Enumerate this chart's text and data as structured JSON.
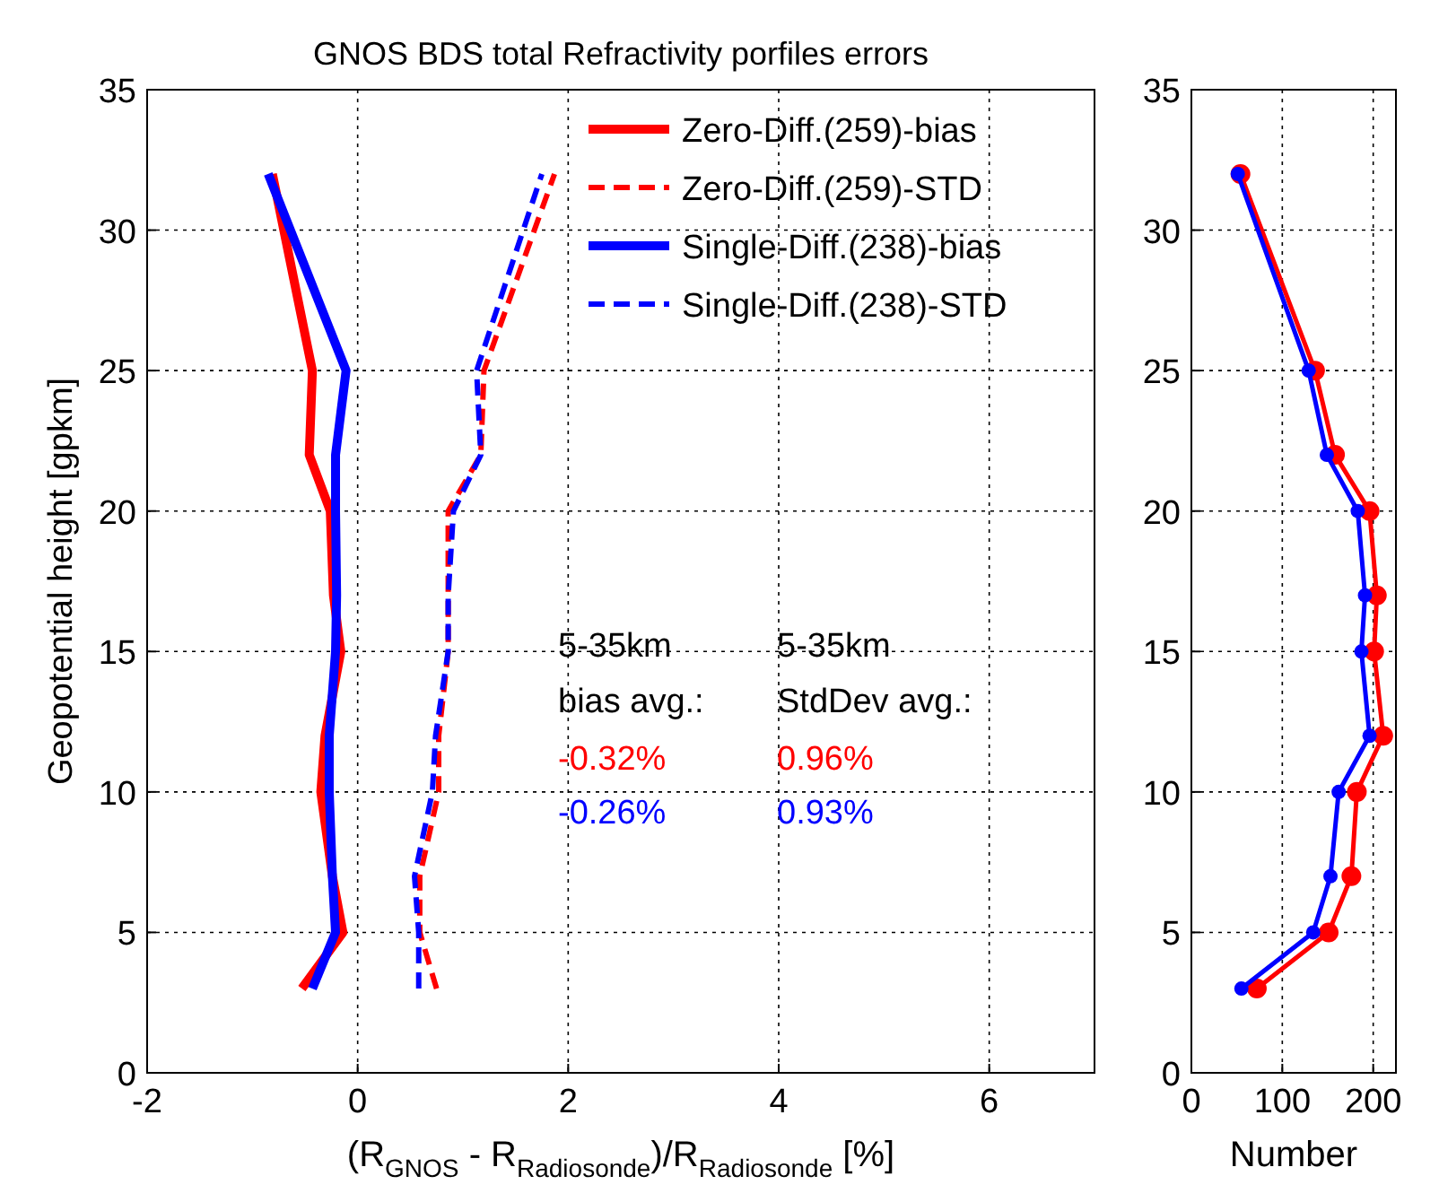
{
  "chart_data": [
    {
      "type": "line",
      "title": "GNOS BDS total Refractivity porfiles errors",
      "xlabel": "(R$_{GNOS}$ - R$_{Radiosonde}$)/R$_{Radiosonde}$ [%]",
      "ylabel": "Geopotential height [gpkm]",
      "xlim": [
        -2,
        7
      ],
      "xticks": [
        -2,
        0,
        2,
        4,
        6
      ],
      "ylim": [
        0,
        35
      ],
      "yticks": [
        0,
        5,
        10,
        15,
        20,
        25,
        30,
        35
      ],
      "grid": true,
      "legend": "top right",
      "series": [
        {
          "name": "Zero-Diff.(259)-bias",
          "color": "#ff0000",
          "line_style": "solid",
          "x": [
            -0.53,
            -0.14,
            -0.24,
            -0.35,
            -0.31,
            -0.16,
            -0.23,
            -0.26,
            -0.46,
            -0.43,
            -0.81
          ],
          "values": [
            3,
            5,
            7,
            10,
            12,
            15,
            17,
            20,
            22,
            25,
            32
          ]
        },
        {
          "name": "Zero-Diff.(259)-STD",
          "color": "#ff0000",
          "line_style": "dashed",
          "x": [
            0.75,
            0.59,
            0.59,
            0.77,
            0.77,
            0.86,
            0.86,
            0.86,
            1.17,
            1.2,
            1.87
          ],
          "values": [
            3,
            5,
            7,
            10,
            12,
            15,
            17,
            20,
            22,
            25,
            32
          ]
        },
        {
          "name": "Single-Diff.(238)-bias",
          "color": "#0000ff",
          "line_style": "solid",
          "x": [
            -0.43,
            -0.21,
            -0.24,
            -0.27,
            -0.27,
            -0.21,
            -0.2,
            -0.21,
            -0.21,
            -0.11,
            -0.85
          ],
          "values": [
            3,
            5,
            7,
            10,
            12,
            15,
            17,
            20,
            22,
            25,
            32
          ]
        },
        {
          "name": "Single-Diff.(238)-STD",
          "color": "#0000ff",
          "line_style": "dashed",
          "x": [
            0.58,
            0.58,
            0.54,
            0.71,
            0.74,
            0.86,
            0.86,
            0.91,
            1.17,
            1.13,
            1.75
          ],
          "values": [
            3,
            5,
            7,
            10,
            12,
            15,
            17,
            20,
            22,
            25,
            32
          ]
        }
      ],
      "annotations": [
        "5-35km\nbias avg.:",
        "5-35km\nStdDev avg.:",
        "-0.32%",
        "0.96%",
        "-0.26%",
        "0.93%"
      ]
    },
    {
      "type": "line",
      "xlabel": "Number",
      "xlim": [
        0,
        225
      ],
      "xticks": [
        0,
        100,
        200
      ],
      "ylim": [
        0,
        35
      ],
      "yticks": [
        0,
        5,
        10,
        15,
        20,
        25,
        30,
        35
      ],
      "grid": true,
      "marker": "circle",
      "series": [
        {
          "color": "#ff0000",
          "x": [
            72,
            151,
            176,
            182,
            211,
            201,
            204,
            196,
            158,
            136,
            54
          ],
          "values": [
            3,
            5,
            7,
            10,
            12,
            15,
            17,
            20,
            22,
            25,
            32
          ]
        },
        {
          "color": "#0000ff",
          "x": [
            55,
            134,
            153,
            162,
            196,
            187,
            191,
            183,
            149,
            129,
            51
          ],
          "values": [
            3,
            5,
            7,
            10,
            12,
            15,
            17,
            20,
            22,
            25,
            32
          ]
        }
      ]
    }
  ]
}
